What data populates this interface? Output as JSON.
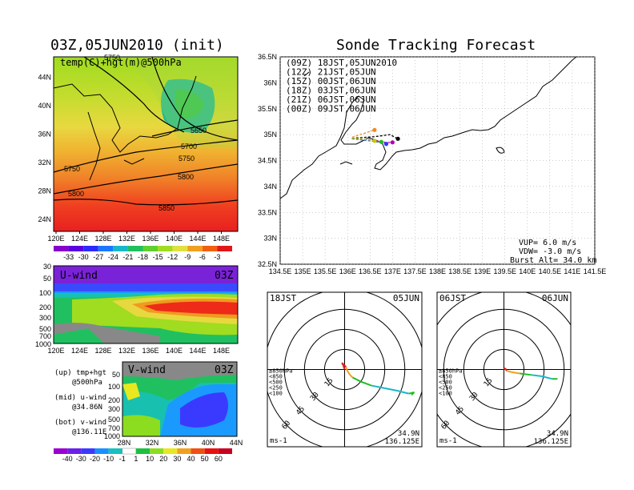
{
  "page": {
    "left_title": "03Z,05JUN2010 (init)",
    "right_title": "Sonde Tracking Forecast"
  },
  "colors": {
    "contour": "#000000",
    "land": "#000000",
    "track_09z": "#000000",
    "track_12z": "#b000b0",
    "track_15z": "#2244ee",
    "track_18z": "#22bb22",
    "track_21z": "#c8c800",
    "track_00z": "#f08a20"
  },
  "chart_data": [
    {
      "id": "temp-hgt-500",
      "type": "heatmap",
      "title": "temp(C)+hgt(m)@500hPa",
      "x_ticks": [
        "120E",
        "124E",
        "128E",
        "132E",
        "136E",
        "140E",
        "144E",
        "148E"
      ],
      "y_ticks": [
        "24N",
        "28N",
        "32N",
        "36N",
        "40N",
        "44N"
      ],
      "contour_labels": [
        "5750",
        "5650",
        "5700",
        "5750",
        "5750",
        "5800",
        "5800",
        "5850"
      ],
      "colorbar": {
        "labels": [
          "-33",
          "-30",
          "-27",
          "-24",
          "-21",
          "-18",
          "-15",
          "-12",
          "-9",
          "-6",
          "-3"
        ],
        "colors": [
          "#8800cc",
          "#5a00e0",
          "#2a2aff",
          "#1a78ff",
          "#18b8c8",
          "#20c060",
          "#60d030",
          "#a0dc20",
          "#e0e040",
          "#f0a020",
          "#f06010",
          "#e01818"
        ]
      }
    },
    {
      "id": "u-wind",
      "type": "heatmap",
      "title": "U-wind",
      "time_label": "03Z",
      "x_ticks": [
        "120E",
        "124E",
        "128E",
        "132E",
        "136E",
        "140E",
        "144E",
        "148E"
      ],
      "y_ticks": [
        "30",
        "50",
        "100",
        "200",
        "300",
        "500",
        "700",
        "1000"
      ]
    },
    {
      "id": "v-wind",
      "type": "heatmap",
      "title": "V-wind",
      "time_label": "03Z",
      "x_ticks": [
        "28N",
        "32N",
        "36N",
        "40N",
        "44N"
      ],
      "y_ticks": [
        "50",
        "100",
        "200",
        "300",
        "500",
        "700",
        "1000"
      ],
      "colorbar": {
        "labels": [
          "-40",
          "-30",
          "-20",
          "-10",
          "-1",
          "1",
          "10",
          "20",
          "30",
          "40",
          "50",
          "60"
        ],
        "colors": [
          "#9a00d0",
          "#6a20e8",
          "#3a3aff",
          "#1a90ff",
          "#18c0c0",
          "#ffffff",
          "#1cc040",
          "#8cdc20",
          "#e8e820",
          "#f0a020",
          "#f05010",
          "#e81010",
          "#c80020"
        ]
      }
    },
    {
      "id": "sonde-track",
      "type": "line",
      "title": "Sonde Tracking Forecast",
      "x_ticks": [
        "134.5E",
        "135E",
        "135.5E",
        "136E",
        "136.5E",
        "137E",
        "137.5E",
        "138E",
        "138.5E",
        "139E",
        "139.5E",
        "140E",
        "140.5E",
        "141E",
        "141.5E"
      ],
      "y_ticks": [
        "32.5N",
        "33N",
        "33.5N",
        "34N",
        "34.5N",
        "35N",
        "35.5N",
        "36N",
        "36.5N"
      ],
      "xlim": [
        134.5,
        141.5
      ],
      "ylim": [
        32.5,
        36.5
      ],
      "series": [
        {
          "name": "(09Z) 18JST,05JUN2010",
          "color_key": "track_09z",
          "points": [
            [
              136.1,
              34.93
            ],
            [
              136.6,
              34.96
            ],
            [
              136.95,
              35.0
            ],
            [
              137.05,
              34.95
            ],
            [
              137.12,
              34.92
            ]
          ]
        },
        {
          "name": "(12Z) 21JST,05JUN",
          "color_key": "track_12z",
          "points": [
            [
              136.1,
              34.92
            ],
            [
              136.55,
              34.9
            ],
            [
              136.85,
              34.85
            ],
            [
              137.0,
              34.85
            ]
          ]
        },
        {
          "name": "(15Z) 00JST,06JUN",
          "color_key": "track_15z",
          "points": [
            [
              136.1,
              34.92
            ],
            [
              136.5,
              34.88
            ],
            [
              136.8,
              34.84
            ],
            [
              136.86,
              34.82
            ]
          ]
        },
        {
          "name": "(18Z) 03JST,06JUN",
          "color_key": "track_18z",
          "points": [
            [
              136.1,
              34.93
            ],
            [
              136.5,
              34.9
            ],
            [
              136.7,
              34.86
            ],
            [
              136.75,
              34.86
            ]
          ]
        },
        {
          "name": "(21Z) 06JST,06JUN",
          "color_key": "track_21z",
          "points": [
            [
              136.1,
              34.93
            ],
            [
              136.45,
              34.9
            ],
            [
              136.6,
              34.88
            ]
          ]
        },
        {
          "name": "(00Z) 09JST,06JUN",
          "color_key": "track_00z",
          "points": [
            [
              136.1,
              34.95
            ],
            [
              136.35,
              35.02
            ],
            [
              136.6,
              35.09
            ]
          ]
        }
      ],
      "annotations": [
        "VUP= 6.0 m/s",
        "VDW= -3.0 m/s",
        "Burst Alt= 34.0 km"
      ]
    },
    {
      "id": "hodo-18jst",
      "type": "line",
      "title_left": "18JST",
      "title_right": "05JUN",
      "ring_labels": [
        "15",
        "30",
        "45",
        "60"
      ],
      "legend": [
        "≥850hPa",
        "<850",
        "<500",
        "<250",
        "<100"
      ],
      "legend_colors": [
        "#e02020",
        "#f0a020",
        "#22bb22",
        "#18b8c8",
        "#2244ee"
      ],
      "unit": "ms-1",
      "loc_lat": "34.9N",
      "loc_lon": "136.125E",
      "points": [
        [
          0,
          0
        ],
        [
          -1,
          3
        ],
        [
          -2,
          5
        ],
        [
          1,
          2
        ],
        [
          2,
          -1
        ],
        [
          4,
          -4
        ],
        [
          6,
          -6
        ],
        [
          12,
          -9
        ],
        [
          20,
          -12
        ],
        [
          30,
          -14
        ],
        [
          40,
          -16
        ],
        [
          48,
          -18
        ],
        [
          52,
          -17
        ],
        [
          50,
          -19
        ]
      ]
    },
    {
      "id": "hodo-06jst",
      "type": "line",
      "title_left": "06JST",
      "title_right": "06JUN",
      "ring_labels": [
        "15",
        "30",
        "45",
        "60"
      ],
      "legend": [
        "≥850hPa",
        "<850",
        "<500",
        "<250",
        "<100"
      ],
      "legend_colors": [
        "#e02020",
        "#f0a020",
        "#22bb22",
        "#18b8c8",
        "#2244ee"
      ],
      "unit": "ms-1",
      "loc_lat": "34.9N",
      "loc_lon": "136.125E",
      "points": [
        [
          0,
          0
        ],
        [
          1,
          1
        ],
        [
          2,
          -1
        ],
        [
          6,
          -2
        ],
        [
          12,
          -3
        ],
        [
          20,
          -4
        ],
        [
          28,
          -5
        ],
        [
          36,
          -7
        ],
        [
          40,
          -7
        ]
      ]
    }
  ],
  "legend_panel": {
    "lines": [
      [
        "(up) tmp+hgt",
        "@500hPa"
      ],
      [
        "(mid) u-wind",
        "@34.86N"
      ],
      [
        "(bot) v-wind",
        "@136.11E"
      ]
    ]
  }
}
